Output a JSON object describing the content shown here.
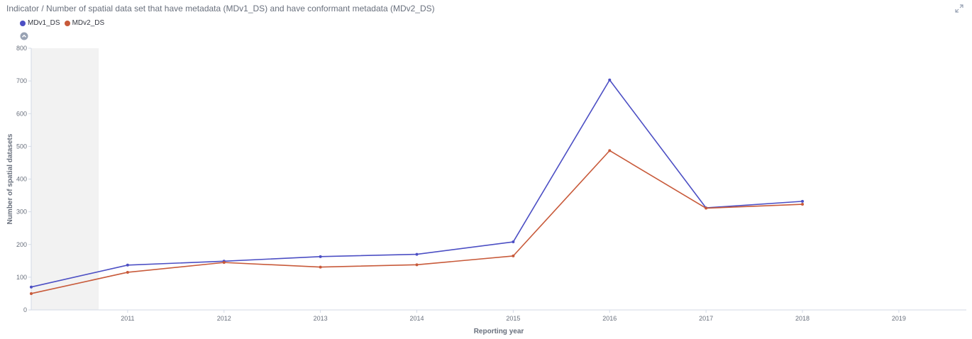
{
  "panel": {
    "title": "Indicator / Number of spatial data set that have metadata (MDv1_DS) and have conformant metadata (MDv2_DS)",
    "expand_icon": "expand-icon",
    "collapse_icon": "chevron-up-circle-icon"
  },
  "legend": {
    "items": [
      {
        "label": "MDv1_DS",
        "color": "#4c4fc4"
      },
      {
        "label": "MDv2_DS",
        "color": "#c85a3a"
      }
    ]
  },
  "chart_data": {
    "type": "line",
    "xlabel": "Reporting year",
    "ylabel": "Number of spatial datasets",
    "x": [
      2010,
      2011,
      2012,
      2013,
      2014,
      2015,
      2016,
      2017,
      2018
    ],
    "x_ticks": [
      "2011",
      "2012",
      "2013",
      "2014",
      "2015",
      "2016",
      "2017",
      "2018",
      "2019"
    ],
    "xlim": [
      2010,
      2019.7
    ],
    "ylim": [
      0,
      800
    ],
    "y_ticks": [
      0,
      100,
      200,
      300,
      400,
      500,
      600,
      700,
      800
    ],
    "shaded_x_range": [
      2010,
      2010.7
    ],
    "grid": false,
    "legend_position": "top-left",
    "series": [
      {
        "name": "MDv1_DS",
        "color": "#4c4fc4",
        "values": [
          70,
          137,
          149,
          163,
          170,
          208,
          703,
          312,
          332
        ]
      },
      {
        "name": "MDv2_DS",
        "color": "#c85a3a",
        "values": [
          50,
          115,
          145,
          131,
          138,
          165,
          487,
          311,
          323
        ]
      }
    ]
  }
}
